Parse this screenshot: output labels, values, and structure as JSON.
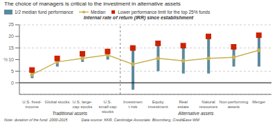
{
  "chart_data": {
    "type": "bar",
    "title": "The choice of managers is critical to the investment in alternative assets",
    "subtitle": "Internal rate of return (IRR) since establishment",
    "ylabel": "%",
    "ylim": [
      -5,
      25
    ],
    "yticks": [
      0,
      5,
      10,
      15,
      20,
      25
    ],
    "categories": [
      "U.S. fixed-\nincome",
      "Global stocks",
      "U.S. large-\ncap stocks",
      "U.S.\nsmall-cap\nstocks",
      "Investmen\nt risk",
      "Equity\ninvestment",
      "Real\nestate",
      "Natural\nresources",
      "Non-performing\nassets",
      "Merger"
    ],
    "groups": [
      {
        "label": "Traditional assets",
        "from": 0,
        "to": 3
      },
      {
        "label": "Alternative assets",
        "from": 4,
        "to": 9
      }
    ],
    "series": [
      {
        "name": "1/2 median fund performance",
        "type": "bar",
        "color": "#5a8a9f",
        "bottom": [
          2,
          7,
          9,
          10,
          -3,
          5,
          4,
          4,
          7,
          7
        ],
        "values": [
          5,
          10,
          12,
          13,
          15,
          17,
          16,
          20,
          15,
          20
        ]
      },
      {
        "name": "Median",
        "type": "line",
        "color": "#c8b050",
        "marker": "circle",
        "values": [
          3.5,
          9,
          10.5,
          12,
          8,
          10.5,
          9.5,
          10.5,
          11,
          14
        ]
      },
      {
        "name": "Lower performance limit for the top 25% funds",
        "type": "scatter",
        "color": "#cc2200",
        "marker": "square",
        "values": [
          5.5,
          10.5,
          12.5,
          13.5,
          15,
          17,
          16,
          20,
          15.5,
          20.5
        ]
      }
    ],
    "grid": true,
    "legend": "top left",
    "reference_lines": {
      "x": [
        3.5
      ],
      "y": [
        0
      ]
    },
    "notes": [
      "Note: duration of the fund: 2000-2015",
      "Data source: KKR, Cambridge Associate, Bloomberg, CreditEase WM"
    ]
  }
}
